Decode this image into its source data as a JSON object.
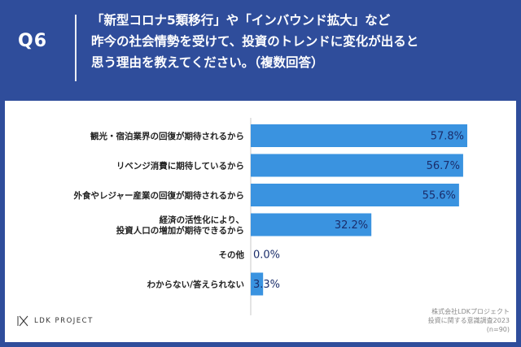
{
  "header": {
    "qnum": "Q6",
    "question_lines": [
      "「新型コロナ5類移行」や「インバウンド拡大」など",
      "昨今の社会情勢を受けて、投資のトレンドに変化が出ると",
      "思う理由を教えてください。（複数回答）"
    ]
  },
  "chart_data": {
    "type": "bar",
    "orientation": "horizontal",
    "categories": [
      [
        "観光・宿泊業界の回復が期待されるから"
      ],
      [
        "リベンジ消費に期待しているから"
      ],
      [
        "外食やレジャー産業の回復が期待されるから"
      ],
      [
        "経済の活性化により、",
        "投資人口の増加が期待できるから"
      ],
      [
        "その他"
      ],
      [
        "わからない/答えられない"
      ]
    ],
    "values": [
      57.8,
      56.7,
      55.6,
      32.2,
      0.0,
      3.3
    ],
    "value_labels": [
      "57.8%",
      "56.7%",
      "55.6%",
      "32.2%",
      "0.0%",
      "3.3%"
    ],
    "xlim": [
      0,
      60
    ],
    "bar_color": "#3a93e0",
    "label_color": "#1a2d6b"
  },
  "footer": {
    "logo_text": "LDK PROJECT",
    "source_lines": [
      "株式会社LDKプロジェクト",
      "投資に関する意識調査2023",
      "(n=90)"
    ]
  }
}
